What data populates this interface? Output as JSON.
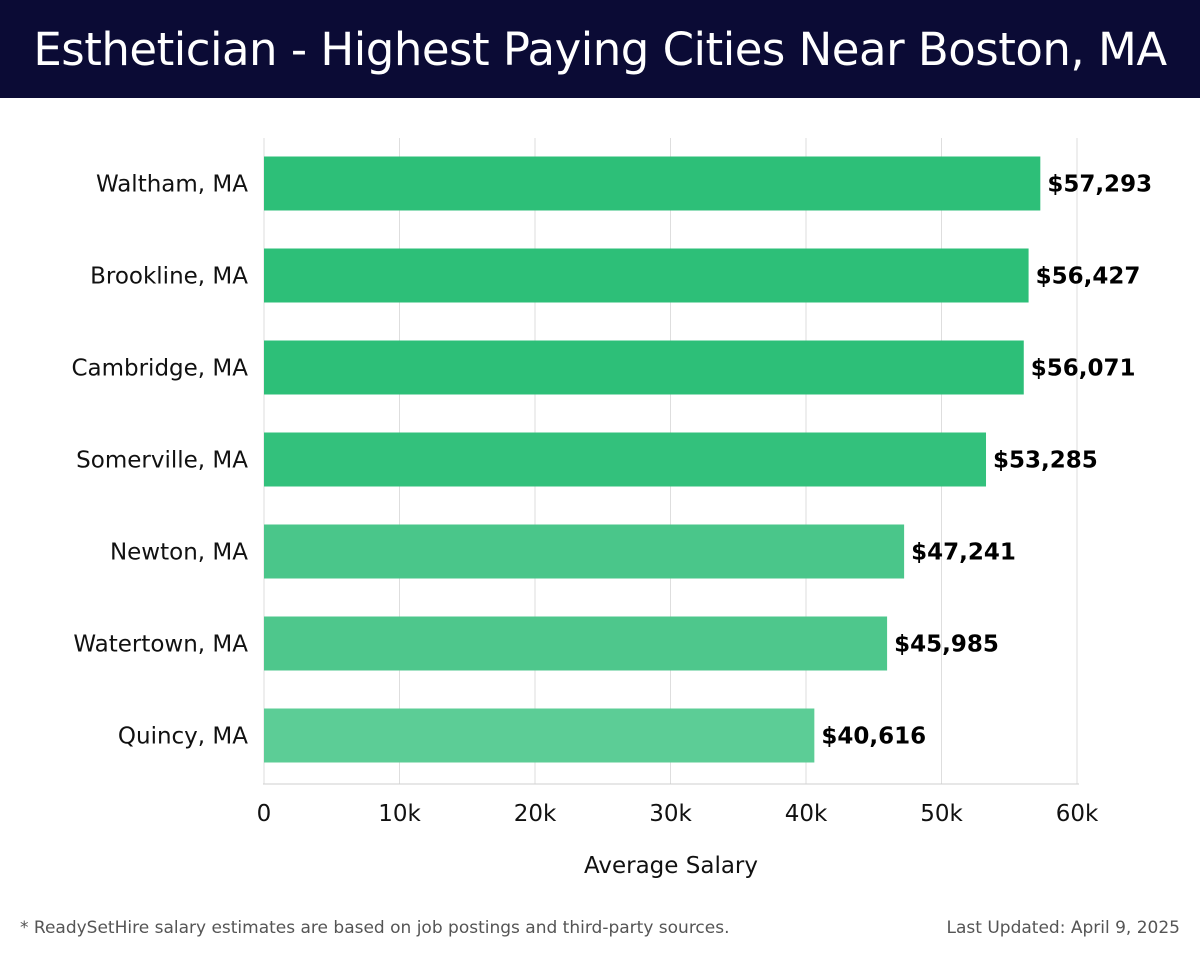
{
  "header": {
    "title": "Esthetician - Highest Paying Cities Near Boston, MA"
  },
  "chart_data": {
    "type": "bar",
    "orientation": "horizontal",
    "categories": [
      "Waltham, MA",
      "Brookline, MA",
      "Cambridge, MA",
      "Somerville, MA",
      "Newton, MA",
      "Watertown, MA",
      "Quincy, MA"
    ],
    "values": [
      57293,
      56427,
      56071,
      53285,
      47241,
      45985,
      40616
    ],
    "value_labels": [
      "$57,293",
      "$56,427",
      "$56,071",
      "$53,285",
      "$47,241",
      "$45,985",
      "$40,616"
    ],
    "bar_colors": [
      "#2dbf78",
      "#2dbf78",
      "#2dbf78",
      "#33c17c",
      "#4ac68a",
      "#4ec78c",
      "#5ccd96"
    ],
    "xlabel": "Average Salary",
    "ylabel": "",
    "xlim": [
      0,
      60000
    ],
    "xticks": [
      0,
      10000,
      20000,
      30000,
      40000,
      50000,
      60000
    ],
    "xtick_labels": [
      "0",
      "10k",
      "20k",
      "30k",
      "40k",
      "50k",
      "60k"
    ],
    "grid": true
  },
  "footer": {
    "note": "* ReadySetHire salary estimates are based on job postings and third-party sources.",
    "updated": "Last Updated: April 9, 2025"
  }
}
